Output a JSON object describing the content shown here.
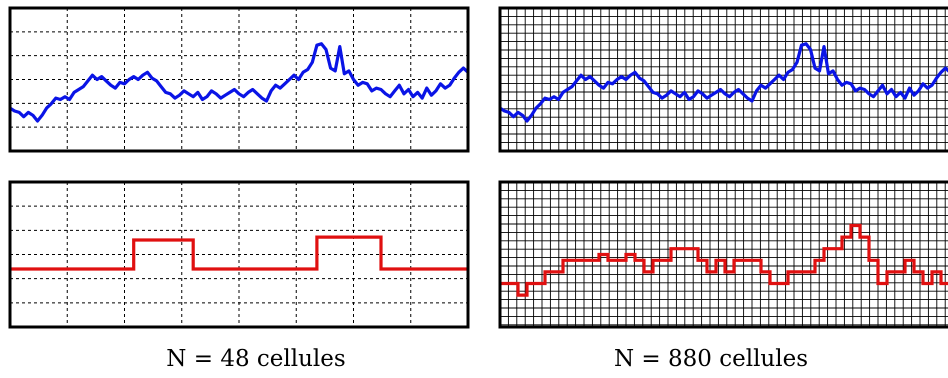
{
  "captions": {
    "left": "N = 48 cellules",
    "right": "N = 880 cellules"
  },
  "colors": {
    "signal": "#0a14e6",
    "steps": "#e01010",
    "frame": "#000000",
    "grid": "#000000"
  },
  "chart_data": [
    {
      "type": "line",
      "grid": "coarse-dashed",
      "series": [
        {
          "x": [
            0,
            1,
            2,
            3,
            4,
            5,
            6,
            7,
            8,
            9,
            10,
            11,
            12,
            13,
            14,
            15,
            16,
            17,
            18,
            19,
            20,
            21,
            22,
            23,
            24,
            25,
            26,
            27,
            28,
            29,
            30,
            31,
            32,
            33,
            34,
            35,
            36,
            37,
            38,
            39,
            40,
            41,
            42,
            43,
            44,
            45,
            46,
            47,
            48,
            49,
            50,
            51,
            52,
            53,
            54,
            55,
            56,
            57,
            58,
            59,
            60,
            61,
            62,
            63,
            64,
            65,
            66,
            67,
            68,
            69,
            70,
            71,
            72,
            73,
            74,
            75,
            76,
            77,
            78,
            79,
            80,
            81,
            82,
            83,
            84,
            85,
            86,
            87,
            88,
            89,
            90,
            91,
            92,
            93,
            94,
            95,
            96,
            97,
            98,
            99,
            100
          ],
          "y": [
            0.3,
            0.28,
            0.27,
            0.24,
            0.27,
            0.25,
            0.21,
            0.25,
            0.3,
            0.33,
            0.37,
            0.36,
            0.38,
            0.36,
            0.41,
            0.43,
            0.45,
            0.49,
            0.53,
            0.5,
            0.52,
            0.49,
            0.46,
            0.44,
            0.48,
            0.47,
            0.5,
            0.52,
            0.5,
            0.53,
            0.55,
            0.51,
            0.49,
            0.45,
            0.41,
            0.4,
            0.37,
            0.39,
            0.42,
            0.4,
            0.38,
            0.41,
            0.36,
            0.38,
            0.42,
            0.4,
            0.37,
            0.39,
            0.41,
            0.43,
            0.4,
            0.38,
            0.41,
            0.43,
            0.4,
            0.37,
            0.35,
            0.42,
            0.46,
            0.44,
            0.47,
            0.5,
            0.53,
            0.5,
            0.55,
            0.57,
            0.62,
            0.74,
            0.75,
            0.71,
            0.58,
            0.56,
            0.73,
            0.54,
            0.56,
            0.5,
            0.46,
            0.48,
            0.47,
            0.42,
            0.44,
            0.43,
            0.4,
            0.38,
            0.42,
            0.46,
            0.4,
            0.43,
            0.38,
            0.41,
            0.37,
            0.44,
            0.39,
            0.42,
            0.47,
            0.44,
            0.46,
            0.51,
            0.55,
            0.58,
            0.55
          ]
        }
      ]
    },
    {
      "type": "line",
      "grid": "fine-solid",
      "series": [
        {
          "x": [
            0,
            1,
            2,
            3,
            4,
            5,
            6,
            7,
            8,
            9,
            10,
            11,
            12,
            13,
            14,
            15,
            16,
            17,
            18,
            19,
            20,
            21,
            22,
            23,
            24,
            25,
            26,
            27,
            28,
            29,
            30,
            31,
            32,
            33,
            34,
            35,
            36,
            37,
            38,
            39,
            40,
            41,
            42,
            43,
            44,
            45,
            46,
            47,
            48,
            49,
            50,
            51,
            52,
            53,
            54,
            55,
            56,
            57,
            58,
            59,
            60,
            61,
            62,
            63,
            64,
            65,
            66,
            67,
            68,
            69,
            70,
            71,
            72,
            73,
            74,
            75,
            76,
            77,
            78,
            79,
            80,
            81,
            82,
            83,
            84,
            85,
            86,
            87,
            88,
            89,
            90,
            91,
            92,
            93,
            94,
            95,
            96,
            97,
            98,
            99,
            100
          ],
          "y": [
            0.3,
            0.28,
            0.27,
            0.24,
            0.27,
            0.25,
            0.21,
            0.25,
            0.3,
            0.33,
            0.37,
            0.36,
            0.38,
            0.36,
            0.41,
            0.43,
            0.45,
            0.49,
            0.53,
            0.5,
            0.52,
            0.49,
            0.46,
            0.44,
            0.48,
            0.47,
            0.5,
            0.52,
            0.5,
            0.53,
            0.55,
            0.51,
            0.49,
            0.45,
            0.41,
            0.4,
            0.37,
            0.39,
            0.42,
            0.4,
            0.38,
            0.41,
            0.36,
            0.38,
            0.42,
            0.4,
            0.37,
            0.39,
            0.41,
            0.43,
            0.4,
            0.38,
            0.41,
            0.43,
            0.4,
            0.37,
            0.35,
            0.42,
            0.46,
            0.44,
            0.47,
            0.5,
            0.53,
            0.5,
            0.55,
            0.57,
            0.62,
            0.74,
            0.75,
            0.71,
            0.58,
            0.56,
            0.73,
            0.54,
            0.56,
            0.5,
            0.46,
            0.48,
            0.47,
            0.42,
            0.44,
            0.43,
            0.4,
            0.38,
            0.42,
            0.46,
            0.4,
            0.43,
            0.38,
            0.41,
            0.37,
            0.44,
            0.39,
            0.42,
            0.47,
            0.44,
            0.46,
            0.51,
            0.55,
            0.58,
            0.55
          ]
        }
      ]
    },
    {
      "type": "line",
      "grid": "coarse-dashed",
      "step": true,
      "series": [
        {
          "x": [
            0,
            27,
            27,
            40,
            40,
            67,
            67,
            81,
            81,
            100
          ],
          "y": [
            0.4,
            0.4,
            0.6,
            0.6,
            0.4,
            0.4,
            0.62,
            0.62,
            0.4,
            0.4
          ]
        }
      ]
    },
    {
      "type": "line",
      "grid": "fine-solid",
      "step": true,
      "series": [
        {
          "x": [
            0,
            4,
            4,
            6,
            6,
            10,
            10,
            14,
            14,
            22,
            22,
            24,
            24,
            28,
            28,
            30,
            30,
            32,
            32,
            34,
            34,
            38,
            38,
            44,
            44,
            46,
            46,
            48,
            48,
            50,
            50,
            52,
            52,
            58,
            58,
            60,
            60,
            64,
            64,
            70,
            70,
            72,
            72,
            76,
            76,
            78,
            78,
            80,
            80,
            82,
            82,
            84,
            84,
            86,
            86,
            90,
            90,
            92,
            92,
            94,
            94,
            96,
            96,
            98,
            98,
            100
          ],
          "y": [
            0.3,
            0.3,
            0.22,
            0.22,
            0.3,
            0.3,
            0.38,
            0.38,
            0.46,
            0.46,
            0.5,
            0.5,
            0.46,
            0.46,
            0.5,
            0.5,
            0.46,
            0.46,
            0.38,
            0.38,
            0.46,
            0.46,
            0.54,
            0.54,
            0.46,
            0.46,
            0.38,
            0.38,
            0.46,
            0.46,
            0.38,
            0.38,
            0.46,
            0.46,
            0.38,
            0.38,
            0.3,
            0.3,
            0.38,
            0.38,
            0.46,
            0.46,
            0.54,
            0.54,
            0.62,
            0.62,
            0.7,
            0.7,
            0.62,
            0.62,
            0.46,
            0.46,
            0.3,
            0.3,
            0.38,
            0.38,
            0.46,
            0.46,
            0.38,
            0.38,
            0.3,
            0.3,
            0.38,
            0.38,
            0.3,
            0.3
          ]
        }
      ]
    }
  ]
}
